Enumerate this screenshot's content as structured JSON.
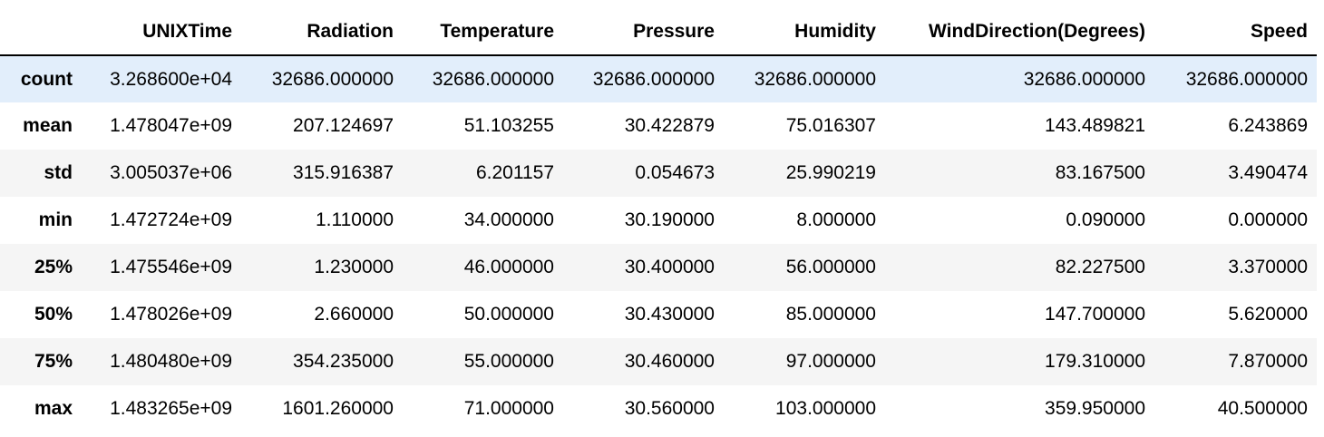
{
  "table": {
    "index_header": "",
    "columns": [
      "UNIXTime",
      "Radiation",
      "Temperature",
      "Pressure",
      "Humidity",
      "WindDirection(Degrees)",
      "Speed"
    ],
    "highlight_color": "#e2eefb",
    "stripe_color": "#f5f5f5",
    "rows": [
      {
        "label": "count",
        "values": [
          "3.268600e+04",
          "32686.000000",
          "32686.000000",
          "32686.000000",
          "32686.000000",
          "32686.000000",
          "32686.000000"
        ]
      },
      {
        "label": "mean",
        "values": [
          "1.478047e+09",
          "207.124697",
          "51.103255",
          "30.422879",
          "75.016307",
          "143.489821",
          "6.243869"
        ]
      },
      {
        "label": "std",
        "values": [
          "3.005037e+06",
          "315.916387",
          "6.201157",
          "0.054673",
          "25.990219",
          "83.167500",
          "3.490474"
        ]
      },
      {
        "label": "min",
        "values": [
          "1.472724e+09",
          "1.110000",
          "34.000000",
          "30.190000",
          "8.000000",
          "0.090000",
          "0.000000"
        ]
      },
      {
        "label": "25%",
        "values": [
          "1.475546e+09",
          "1.230000",
          "46.000000",
          "30.400000",
          "56.000000",
          "82.227500",
          "3.370000"
        ]
      },
      {
        "label": "50%",
        "values": [
          "1.478026e+09",
          "2.660000",
          "50.000000",
          "30.430000",
          "85.000000",
          "147.700000",
          "5.620000"
        ]
      },
      {
        "label": "75%",
        "values": [
          "1.480480e+09",
          "354.235000",
          "55.000000",
          "30.460000",
          "97.000000",
          "179.310000",
          "7.870000"
        ]
      },
      {
        "label": "max",
        "values": [
          "1.483265e+09",
          "1601.260000",
          "71.000000",
          "30.560000",
          "103.000000",
          "359.950000",
          "40.500000"
        ]
      }
    ]
  }
}
